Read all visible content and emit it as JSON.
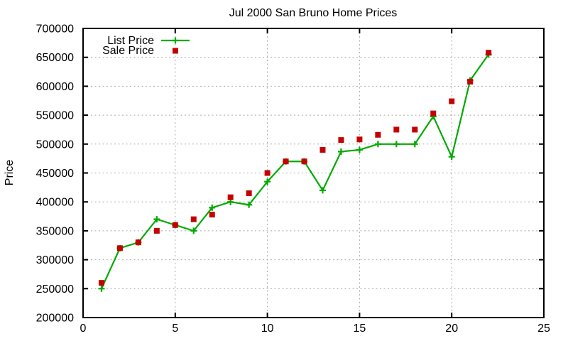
{
  "window": {
    "background": "#ffffff"
  },
  "chart_data": {
    "type": "line",
    "title": "Jul 2000 San Bruno Home Prices",
    "xlabel": "",
    "ylabel": "Price",
    "xlim": [
      0,
      25
    ],
    "ylim": [
      200000,
      700000
    ],
    "xticks": [
      0,
      5,
      10,
      15,
      20,
      25
    ],
    "yticks": [
      200000,
      250000,
      300000,
      350000,
      400000,
      450000,
      500000,
      550000,
      600000,
      650000,
      700000
    ],
    "grid": true,
    "legend_position": "top-left-inside",
    "x": [
      1,
      2,
      3,
      4,
      5,
      6,
      7,
      8,
      9,
      10,
      11,
      12,
      13,
      14,
      15,
      16,
      17,
      18,
      19,
      20,
      21,
      22
    ],
    "series": [
      {
        "name": "List Price",
        "style": "line-with-cross-markers",
        "color": "#00aa00",
        "values": [
          250000,
          320000,
          330000,
          370000,
          360000,
          350000,
          390000,
          400000,
          395000,
          435000,
          470000,
          470000,
          420000,
          487000,
          490000,
          500000,
          500000,
          500000,
          548000,
          478000,
          610000,
          655000
        ]
      },
      {
        "name": "Sale Price",
        "style": "square-markers",
        "color": "#c40000",
        "values": [
          260000,
          320000,
          330000,
          350000,
          360000,
          370000,
          378000,
          408000,
          415000,
          450000,
          470000,
          470000,
          490000,
          507000,
          508000,
          516000,
          525000,
          525000,
          553000,
          574000,
          608000,
          658000
        ]
      }
    ],
    "colors": {
      "grid": "#a9a9a9",
      "axis": "#000000",
      "text": "#000000"
    }
  }
}
